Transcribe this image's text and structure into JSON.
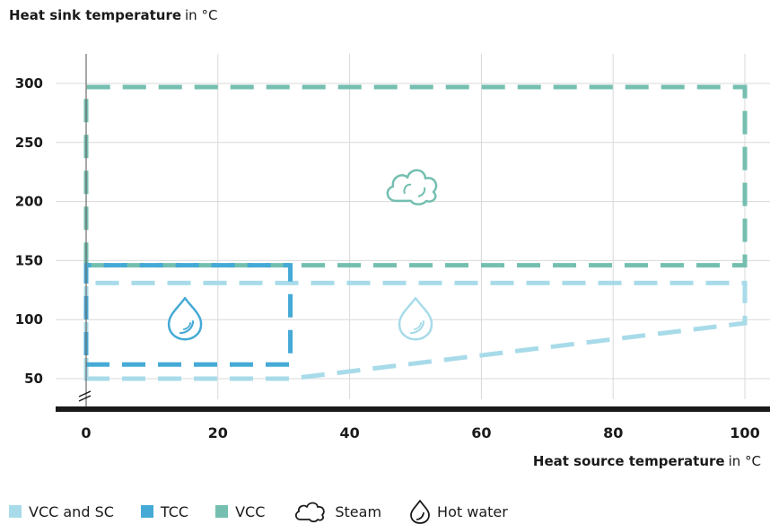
{
  "chart_data": {
    "type": "area",
    "title": "Heat sink temperature",
    "title_unit": "in °C",
    "xlabel": "Heat source temperature",
    "xlabel_unit": "in °C",
    "xlim": [
      0,
      100
    ],
    "ylim": [
      25,
      310
    ],
    "y_axis_break": true,
    "grid": true,
    "x_ticks": [
      "0",
      "20",
      "40",
      "60",
      "80",
      "100"
    ],
    "x_tick_values": [
      0,
      20,
      40,
      60,
      80,
      100
    ],
    "y_ticks": [
      "300",
      "250",
      "200",
      "150",
      "100",
      "50"
    ],
    "y_tick_values": [
      300,
      250,
      200,
      150,
      100,
      50
    ],
    "legend_position": "bottom-left",
    "series": [
      {
        "name": "VCC and SC",
        "color": "#a8dbe9",
        "region": [
          [
            0,
            50
          ],
          [
            31,
            50
          ],
          [
            100,
            97
          ],
          [
            100,
            131
          ],
          [
            0,
            131
          ]
        ]
      },
      {
        "name": "TCC",
        "color": "#45aad6",
        "region": [
          [
            0,
            62
          ],
          [
            31,
            62
          ],
          [
            31,
            146
          ],
          [
            0,
            146
          ]
        ]
      },
      {
        "name": "VCC",
        "color": "#74bfb0",
        "region": [
          [
            0,
            146
          ],
          [
            100,
            146
          ],
          [
            100,
            297
          ],
          [
            0,
            297
          ]
        ]
      }
    ],
    "icons": [
      {
        "name": "steam-icon",
        "x": 50,
        "y": 215,
        "color": "#74bfb0"
      },
      {
        "name": "hot-water-icon",
        "x": 15,
        "y": 100,
        "color": "#45aad6"
      },
      {
        "name": "hot-water-icon",
        "x": 50,
        "y": 100,
        "color": "#a8dbe9"
      }
    ]
  },
  "legend": {
    "vcc_sc": "VCC and SC",
    "tcc": "TCC",
    "vcc": "VCC",
    "steam": "Steam",
    "hot_water": "Hot water"
  }
}
